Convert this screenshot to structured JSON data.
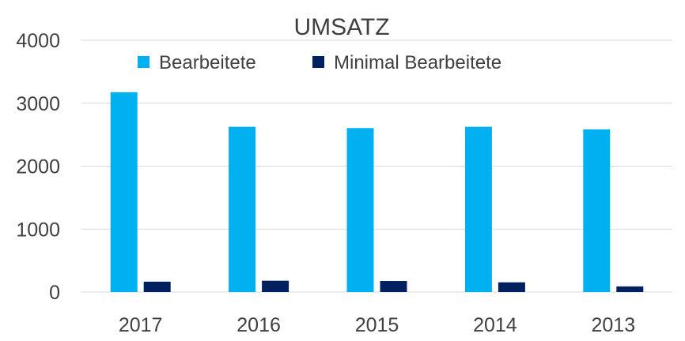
{
  "chart_data": {
    "type": "bar",
    "title": "UMSATZ",
    "categories": [
      "2017",
      "2016",
      "2015",
      "2014",
      "2013"
    ],
    "series": [
      {
        "name": "Bearbeitete",
        "color": "#00b0f0",
        "values": [
          3175,
          2625,
          2605,
          2625,
          2585
        ]
      },
      {
        "name": "Minimal Bearbeitete",
        "color": "#002060",
        "values": [
          165,
          180,
          175,
          155,
          90
        ]
      }
    ],
    "ylim": [
      0,
      4000
    ],
    "yticks": [
      "0",
      "1000",
      "2000",
      "3000",
      "4000"
    ],
    "grid": true,
    "legend_position": "top"
  }
}
